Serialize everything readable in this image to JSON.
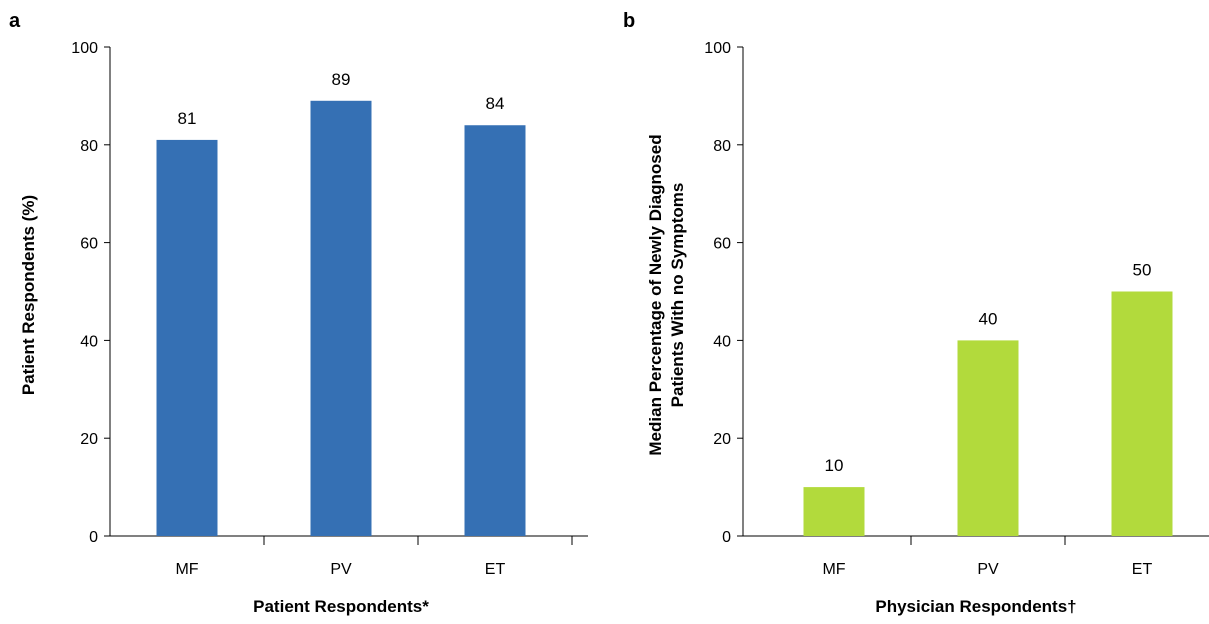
{
  "chart_data": [
    {
      "panel_label": "a",
      "type": "bar",
      "categories": [
        "MF",
        "PV",
        "ET"
      ],
      "values": [
        81,
        89,
        84
      ],
      "data_labels": [
        "81",
        "89",
        "84"
      ],
      "xlabel": "Patient Respondents*",
      "ylabel": "Patient Respondents (%)",
      "ylim": [
        0,
        100
      ],
      "yticks": [
        0,
        20,
        40,
        60,
        80,
        100
      ],
      "grid": false,
      "bar_color": "#3570b4"
    },
    {
      "panel_label": "b",
      "type": "bar",
      "categories": [
        "MF",
        "PV",
        "ET"
      ],
      "values": [
        10,
        40,
        50
      ],
      "data_labels": [
        "10",
        "40",
        "50"
      ],
      "xlabel": "Physician Respondents†",
      "ylabel_lines": [
        "Median Percentage of Newly Diagnosed",
        "Patients With no Symptoms"
      ],
      "ylim": [
        0,
        100
      ],
      "yticks": [
        0,
        20,
        40,
        60,
        80,
        100
      ],
      "grid": false,
      "bar_color": "#b2da3c"
    }
  ]
}
